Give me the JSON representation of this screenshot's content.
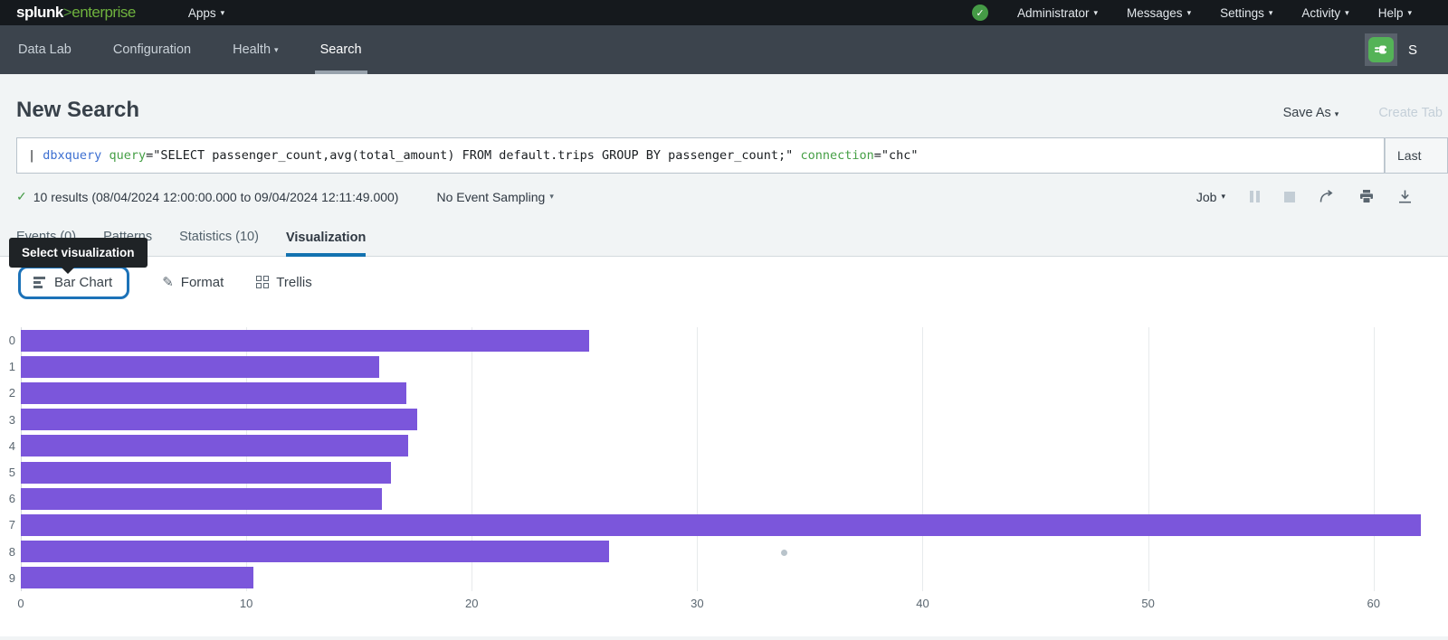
{
  "topbar": {
    "logo_splunk": "splunk",
    "logo_gt": ">",
    "logo_enterprise": "enterprise",
    "apps_label": "Apps",
    "menus": [
      "Administrator",
      "Messages",
      "Settings",
      "Activity",
      "Help"
    ]
  },
  "appnav": {
    "items": [
      "Data Lab",
      "Configuration",
      "Health",
      "Search"
    ],
    "active_item": "Search",
    "app_name": "S"
  },
  "header": {
    "title": "New Search",
    "save_as_label": "Save As",
    "create_table_label": "Create Tab"
  },
  "search": {
    "tokens": [
      {
        "text": "| ",
        "type": "plain"
      },
      {
        "text": "dbxquery",
        "type": "command"
      },
      {
        "text": " ",
        "type": "plain"
      },
      {
        "text": "query",
        "type": "param"
      },
      {
        "text": "=\"SELECT passenger_count,avg(total_amount) FROM default.trips GROUP BY passenger_count;\" ",
        "type": "plain"
      },
      {
        "text": "connection",
        "type": "param"
      },
      {
        "text": "=\"chc\"",
        "type": "plain"
      }
    ],
    "time_range_label": "Last"
  },
  "results": {
    "summary": "10 results (08/04/2024 12:00:00.000 to 09/04/2024 12:11:49.000)",
    "sampling_label": "No Event Sampling",
    "job_label": "Job"
  },
  "tabs": [
    {
      "label": "Events (0)"
    },
    {
      "label": "Patterns"
    },
    {
      "label": "Statistics (10)"
    },
    {
      "label": "Visualization"
    }
  ],
  "tooltip_text": "Select visualization",
  "viz_toolbar": {
    "chart_type_label": "Bar Chart",
    "format_label": "Format",
    "trellis_label": "Trellis"
  },
  "chart_data": {
    "type": "bar",
    "orientation": "horizontal",
    "categories": [
      "0",
      "1",
      "2",
      "3",
      "4",
      "5",
      "6",
      "7",
      "8",
      "9"
    ],
    "values": [
      25.2,
      15.9,
      17.1,
      17.6,
      17.2,
      16.4,
      16.0,
      62.1,
      26.1,
      10.3
    ],
    "title": "",
    "xlabel": "",
    "ylabel": "",
    "xticks": [
      0,
      10,
      20,
      30,
      40,
      50,
      60
    ],
    "xlim": [
      0,
      62.5
    ],
    "grid": true,
    "legend": false,
    "bar_color": "#7B56DB"
  },
  "colors": {
    "accent_blue": "#1372b0",
    "brand_green": "#6fb23e",
    "status_green": "#459b46",
    "bar_purple": "#7B56DB"
  }
}
